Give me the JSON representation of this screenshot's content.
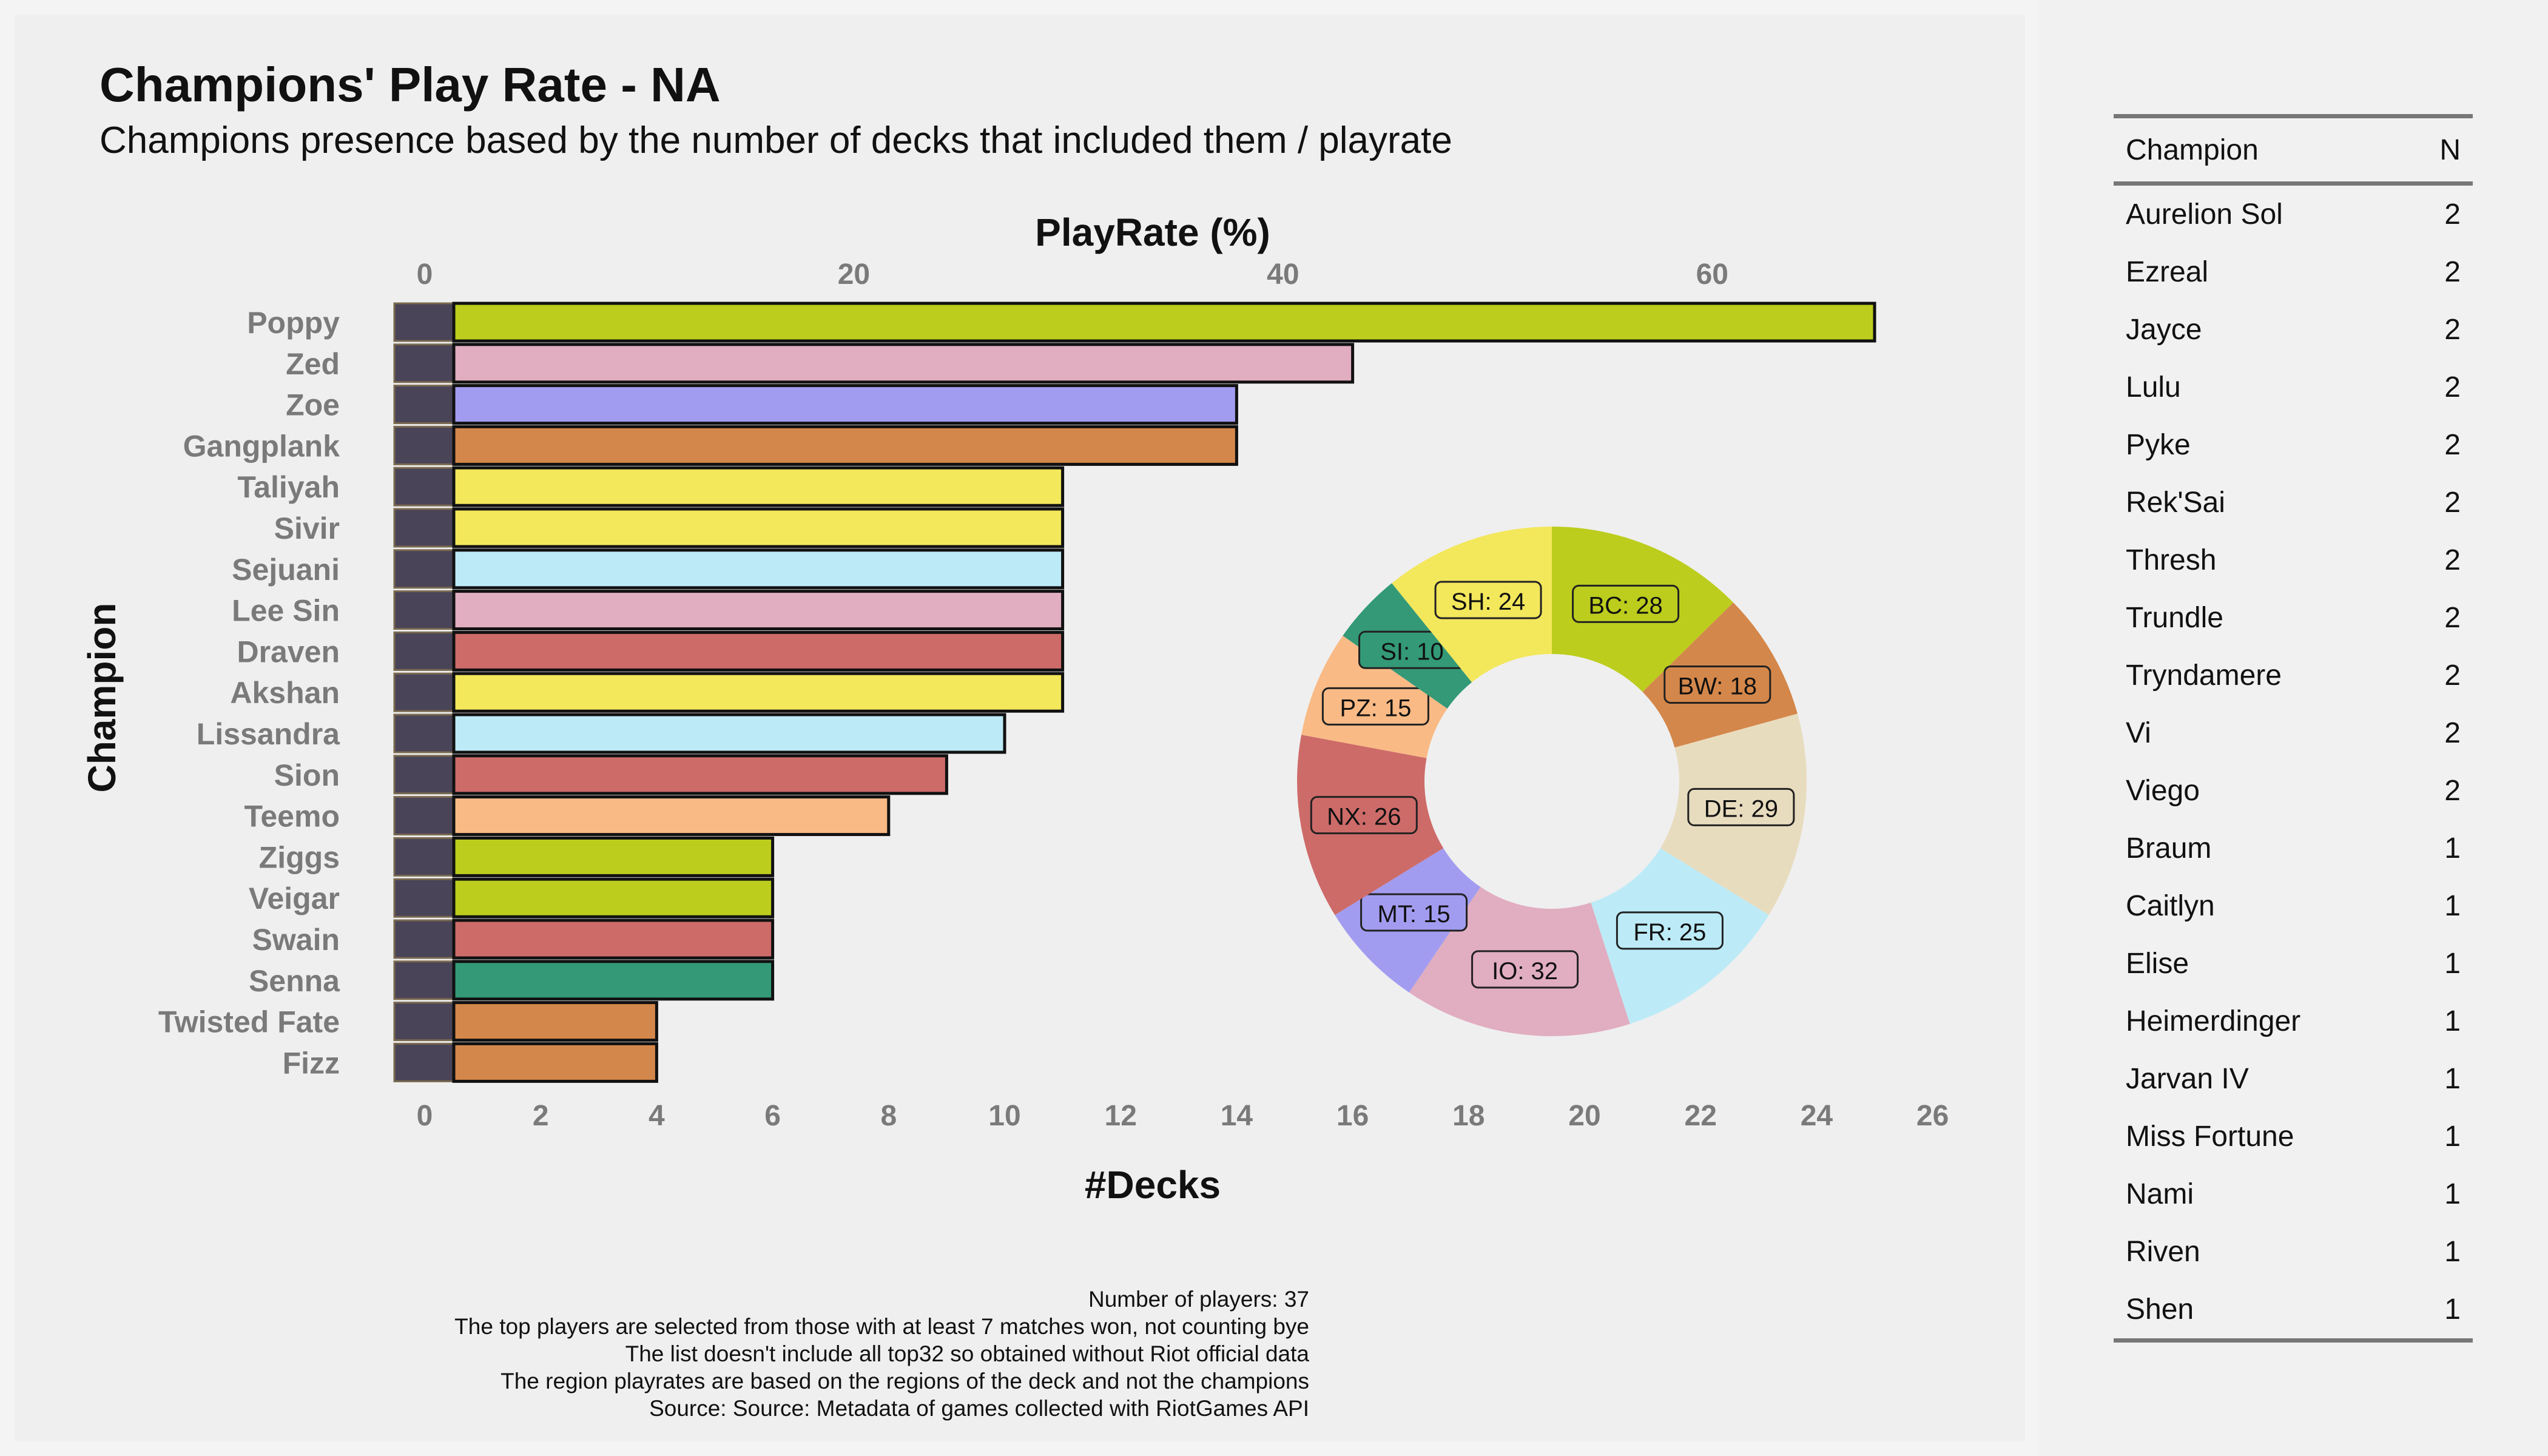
{
  "title": "Champions' Play Rate - NA",
  "subtitle": "Champions presence based by the number of decks that included them / playrate",
  "chart_data": [
    {
      "type": "bar",
      "orientation": "horizontal",
      "categories": [
        "Poppy",
        "Zed",
        "Zoe",
        "Gangplank",
        "Taliyah",
        "Sivir",
        "Sejuani",
        "Lee Sin",
        "Draven",
        "Akshan",
        "Lissandra",
        "Sion",
        "Teemo",
        "Ziggs",
        "Veigar",
        "Swain",
        "Senna",
        "Twisted Fate",
        "Fizz"
      ],
      "values": [
        25,
        16,
        14,
        14,
        11,
        11,
        11,
        11,
        11,
        11,
        10,
        9,
        8,
        6,
        6,
        6,
        6,
        4,
        4
      ],
      "colors": [
        "#bccd1d",
        "#e1adc0",
        "#a29cf0",
        "#d4874a",
        "#f3e75c",
        "#f3e75c",
        "#bcebf7",
        "#e1adc0",
        "#cd6b69",
        "#f3e75c",
        "#bcebf7",
        "#cd6b69",
        "#f9ba85",
        "#bccd1d",
        "#bccd1d",
        "#cd6b69",
        "#339977",
        "#d4874a",
        "#d4874a"
      ],
      "xlabel": "#Decks",
      "ylabel": "Champion",
      "x_ticks": [
        0,
        2,
        4,
        6,
        8,
        10,
        12,
        14,
        16,
        18,
        20,
        22,
        24,
        26
      ],
      "xlim": [
        0,
        26
      ],
      "secondary_axis": {
        "label": "PlayRate (%)",
        "ticks": [
          0,
          20,
          40,
          60
        ]
      }
    },
    {
      "type": "pie",
      "style": "donut",
      "slices": [
        {
          "label": "BC: 28",
          "value": 28,
          "color": "#bccd1d"
        },
        {
          "label": "BW: 18",
          "value": 18,
          "color": "#d4874a"
        },
        {
          "label": "DE: 29",
          "value": 29,
          "color": "#e8dcbf"
        },
        {
          "label": "FR: 25",
          "value": 25,
          "color": "#bcebf7"
        },
        {
          "label": "IO: 32",
          "value": 32,
          "color": "#e1adc0"
        },
        {
          "label": "MT: 15",
          "value": 15,
          "color": "#a29cf0"
        },
        {
          "label": "NX: 26",
          "value": 26,
          "color": "#cd6b69"
        },
        {
          "label": "PZ: 15",
          "value": 15,
          "color": "#f9ba85"
        },
        {
          "label": "SI: 10",
          "value": 10,
          "color": "#339977"
        },
        {
          "label": "SH: 24",
          "value": 24,
          "color": "#f3e75c"
        }
      ]
    },
    {
      "type": "table",
      "columns": [
        "Champion",
        "N"
      ],
      "rows": [
        [
          "Aurelion Sol",
          "2"
        ],
        [
          "Ezreal",
          "2"
        ],
        [
          "Jayce",
          "2"
        ],
        [
          "Lulu",
          "2"
        ],
        [
          "Pyke",
          "2"
        ],
        [
          "Rek'Sai",
          "2"
        ],
        [
          "Thresh",
          "2"
        ],
        [
          "Trundle",
          "2"
        ],
        [
          "Tryndamere",
          "2"
        ],
        [
          "Vi",
          "2"
        ],
        [
          "Viego",
          "2"
        ],
        [
          "Braum",
          "1"
        ],
        [
          "Caitlyn",
          "1"
        ],
        [
          "Elise",
          "1"
        ],
        [
          "Heimerdinger",
          "1"
        ],
        [
          "Jarvan IV",
          "1"
        ],
        [
          "Miss Fortune",
          "1"
        ],
        [
          "Nami",
          "1"
        ],
        [
          "Riven",
          "1"
        ],
        [
          "Shen",
          "1"
        ]
      ]
    }
  ],
  "caption": [
    "Number of players: 37",
    "The top players are selected from those with at least 7 matches won, not counting bye",
    "The list doesn't include all top32 so obtained without Riot official data",
    "The region playrates are based on the regions of the deck and not the champions",
    "Source: Source: Metadata of games collected with RiotGames API"
  ]
}
